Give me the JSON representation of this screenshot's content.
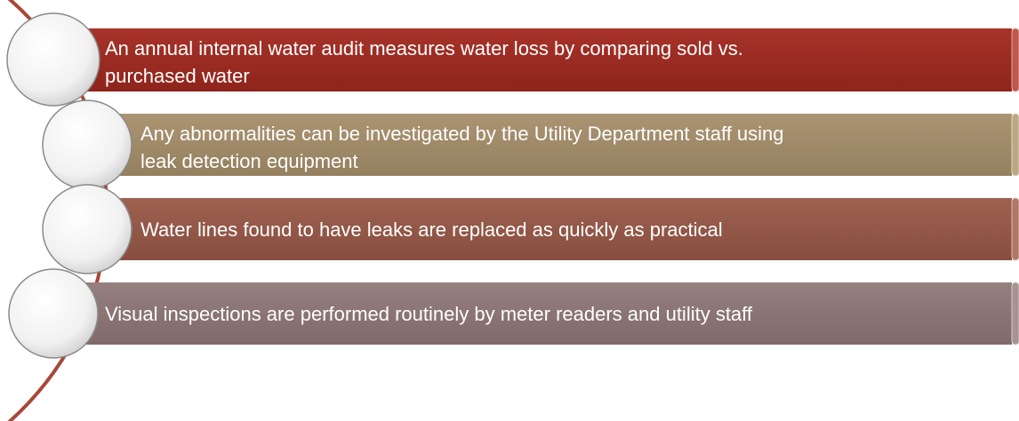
{
  "items": [
    {
      "text": "An annual internal water audit measures water loss by comparing sold vs.",
      "text2": "purchased water"
    },
    {
      "text": "Any abnormalities can be investigated by the Utility Department staff using",
      "text2": "leak detection equipment"
    },
    {
      "text": "Water lines found to have leaks are replaced as quickly as practical"
    },
    {
      "text": "Visual inspections are performed routinely by meter readers and utility staff"
    }
  ]
}
